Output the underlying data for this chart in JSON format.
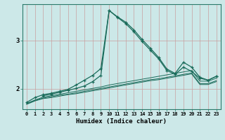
{
  "xlabel": "Humidex (Indice chaleur)",
  "bg_color": "#cce8e8",
  "grid_color": "#c8a0a0",
  "line_color": "#1a6b5a",
  "xlim": [
    -0.5,
    23.5
  ],
  "ylim": [
    1.58,
    3.75
  ],
  "yticks": [
    2,
    3
  ],
  "xticks": [
    0,
    1,
    2,
    3,
    4,
    5,
    6,
    7,
    8,
    9,
    10,
    11,
    12,
    13,
    14,
    15,
    16,
    17,
    18,
    19,
    20,
    21,
    22,
    23
  ],
  "lines": [
    {
      "x": [
        0,
        1,
        2,
        3,
        4,
        5,
        6,
        7,
        8,
        9,
        10,
        11,
        12,
        13,
        14,
        15,
        16,
        17,
        18,
        19,
        20,
        21,
        22,
        23
      ],
      "y": [
        1.72,
        1.82,
        1.88,
        1.91,
        1.95,
        1.99,
        2.08,
        2.18,
        2.28,
        2.42,
        3.62,
        3.48,
        3.35,
        3.18,
        2.98,
        2.8,
        2.62,
        2.38,
        2.3,
        2.45,
        2.36,
        2.22,
        2.18,
        2.26
      ],
      "marker": true
    },
    {
      "x": [
        0,
        1,
        2,
        3,
        4,
        5,
        6,
        7,
        8,
        9,
        10,
        11,
        12,
        13,
        14,
        15,
        16,
        17,
        18,
        19,
        20,
        21,
        22,
        23
      ],
      "y": [
        1.7,
        1.77,
        1.83,
        1.86,
        1.89,
        1.92,
        1.95,
        1.98,
        2.01,
        2.04,
        2.08,
        2.11,
        2.14,
        2.17,
        2.2,
        2.23,
        2.26,
        2.29,
        2.32,
        2.35,
        2.38,
        2.16,
        2.16,
        2.22
      ],
      "marker": false
    },
    {
      "x": [
        0,
        1,
        2,
        3,
        4,
        5,
        6,
        7,
        8,
        9,
        10,
        11,
        12,
        13,
        14,
        15,
        16,
        17,
        18,
        19,
        20,
        21,
        22,
        23
      ],
      "y": [
        1.69,
        1.76,
        1.81,
        1.84,
        1.87,
        1.89,
        1.92,
        1.95,
        1.98,
        2.01,
        2.04,
        2.07,
        2.1,
        2.13,
        2.16,
        2.19,
        2.21,
        2.24,
        2.27,
        2.3,
        2.33,
        2.11,
        2.11,
        2.17
      ],
      "marker": false
    },
    {
      "x": [
        0,
        1,
        2,
        3,
        4,
        5,
        6,
        7,
        8,
        9,
        10,
        11,
        12,
        13,
        14,
        15,
        16,
        17,
        18,
        19,
        20,
        21,
        22,
        23
      ],
      "y": [
        1.68,
        1.75,
        1.8,
        1.82,
        1.85,
        1.88,
        1.9,
        1.93,
        1.96,
        1.99,
        2.02,
        2.05,
        2.08,
        2.11,
        2.14,
        2.17,
        2.19,
        2.22,
        2.25,
        2.28,
        2.31,
        2.09,
        2.09,
        2.15
      ],
      "marker": false
    },
    {
      "x": [
        2,
        3,
        4,
        5,
        6,
        7,
        8,
        9,
        10,
        11,
        12,
        13,
        14,
        15,
        16,
        17,
        18,
        19,
        20,
        21,
        22,
        23
      ],
      "y": [
        1.86,
        1.89,
        1.93,
        1.97,
        2.01,
        2.06,
        2.15,
        2.28,
        3.62,
        3.49,
        3.38,
        3.22,
        3.02,
        2.84,
        2.65,
        2.41,
        2.32,
        2.55,
        2.45,
        2.24,
        2.18,
        2.26
      ],
      "marker": true
    }
  ]
}
